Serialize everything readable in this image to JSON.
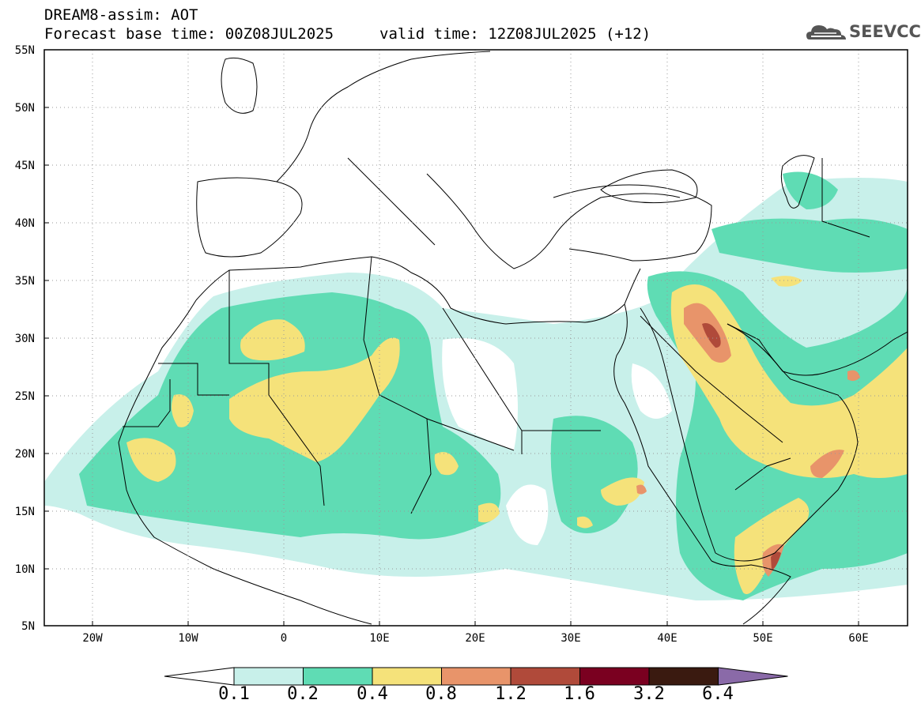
{
  "header": {
    "title": "DREAM8-assim: AOT",
    "base_time": "Forecast base time: 00Z08JUL2025",
    "valid_time": "valid time: 12Z08JUL2025 (+12)"
  },
  "logo": {
    "text": "SEEVCCC",
    "icon": "cloud-logo-icon"
  },
  "map": {
    "lat_labels": [
      "55N",
      "50N",
      "45N",
      "40N",
      "35N",
      "30N",
      "25N",
      "20N",
      "15N",
      "10N",
      "5N"
    ],
    "lon_labels": [
      "20W",
      "10W",
      "0",
      "10E",
      "20E",
      "30E",
      "40E",
      "50E",
      "60E"
    ],
    "lat_range": [
      5,
      55
    ],
    "lon_range": [
      -25,
      65
    ],
    "graticule": "dotted"
  },
  "colorbar": {
    "labels": [
      "0.1",
      "0.2",
      "0.4",
      "0.8",
      "1.2",
      "1.6",
      "3.2",
      "6.4"
    ],
    "colors": [
      "#ffffff",
      "#c8f0ea",
      "#5fdcb4",
      "#f5e27a",
      "#e8946a",
      "#b04a3a",
      "#7a0020",
      "#3a1a10",
      "#8a6aa8"
    ]
  }
}
